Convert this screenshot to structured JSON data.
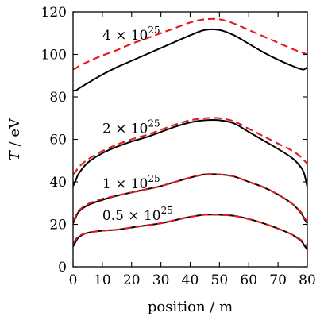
{
  "chart_data": {
    "type": "line",
    "xlabel": "position / m",
    "ylabel": "T / eV",
    "xlim": [
      0,
      80
    ],
    "ylim": [
      0,
      120
    ],
    "xticks": [
      0,
      10,
      20,
      30,
      40,
      50,
      60,
      70,
      80
    ],
    "yticks": [
      0,
      20,
      40,
      60,
      80,
      100,
      120
    ],
    "grid": false,
    "x": [
      0,
      1,
      2,
      5,
      10,
      15,
      20,
      25,
      30,
      35,
      40,
      45,
      50,
      55,
      60,
      65,
      70,
      75,
      78,
      79,
      80
    ],
    "series": [
      {
        "style": "solid",
        "color": "#000000",
        "group": "4e25",
        "values": [
          83,
          83,
          84,
          86.5,
          90.5,
          94,
          97,
          100,
          103,
          106,
          109,
          111.5,
          111.5,
          109,
          105,
          101,
          97.5,
          94.5,
          93,
          93,
          94
        ]
      },
      {
        "style": "dashed",
        "color": "#e41a1c",
        "group": "4e25",
        "values": [
          93,
          93.5,
          94.5,
          96.5,
          99.5,
          102,
          105,
          107.5,
          110,
          112.5,
          115,
          116.5,
          116.5,
          114.5,
          111.5,
          108.5,
          105.5,
          102.5,
          101,
          100.5,
          100
        ]
      },
      {
        "style": "solid",
        "color": "#000000",
        "group": "2e25",
        "values": [
          38,
          41,
          44,
          49,
          53.5,
          56.5,
          59,
          61,
          63.5,
          66,
          68,
          69,
          69,
          67.5,
          63.5,
          59.5,
          55.5,
          51,
          46.5,
          43.5,
          37.5
        ]
      },
      {
        "style": "dashed",
        "color": "#e41a1c",
        "group": "2e25",
        "values": [
          43.5,
          45,
          47,
          50.5,
          54.5,
          57.5,
          60,
          62,
          64.5,
          67,
          69,
          70,
          70,
          68.5,
          65,
          61.5,
          58,
          54.5,
          51.5,
          50,
          48.5
        ]
      },
      {
        "style": "solid",
        "color": "#000000",
        "group": "1e25",
        "values": [
          20.5,
          23.5,
          26,
          29,
          31.5,
          33.5,
          35,
          36.5,
          38,
          40,
          42,
          43.5,
          43.5,
          42.5,
          40,
          37.5,
          34,
          29.5,
          25,
          22.5,
          20.5
        ]
      },
      {
        "style": "dashed",
        "color": "#e41a1c",
        "group": "1e25",
        "values": [
          21.5,
          24,
          26.5,
          29.5,
          32,
          33.5,
          35,
          36.5,
          38,
          40,
          42,
          43.5,
          43.5,
          42.5,
          40,
          37.5,
          34,
          29.5,
          25.5,
          23,
          21.5
        ]
      },
      {
        "style": "solid",
        "color": "#000000",
        "group": "0.5e25",
        "values": [
          9.5,
          12,
          14,
          16,
          17,
          17.5,
          18.5,
          19.5,
          20.5,
          22,
          23.5,
          24.5,
          24.5,
          24,
          22.5,
          20.5,
          18,
          15,
          12,
          10,
          8
        ]
      },
      {
        "style": "dashed",
        "color": "#e41a1c",
        "group": "0.5e25",
        "values": [
          11,
          13,
          14.5,
          16,
          17,
          17.5,
          18.5,
          19.5,
          20.5,
          22,
          23.5,
          24.5,
          24.5,
          24,
          22.5,
          20.5,
          18,
          15,
          12.5,
          11,
          9.5
        ]
      }
    ],
    "annotations": [
      {
        "mantissa": "4 × 10",
        "exponent": "25",
        "x": 10,
        "y": 107
      },
      {
        "mantissa": "2 × 10",
        "exponent": "25",
        "x": 10,
        "y": 63
      },
      {
        "mantissa": "1 × 10",
        "exponent": "25",
        "x": 10,
        "y": 37
      },
      {
        "mantissa": "0.5 × 10",
        "exponent": "25",
        "x": 10,
        "y": 22
      }
    ]
  }
}
